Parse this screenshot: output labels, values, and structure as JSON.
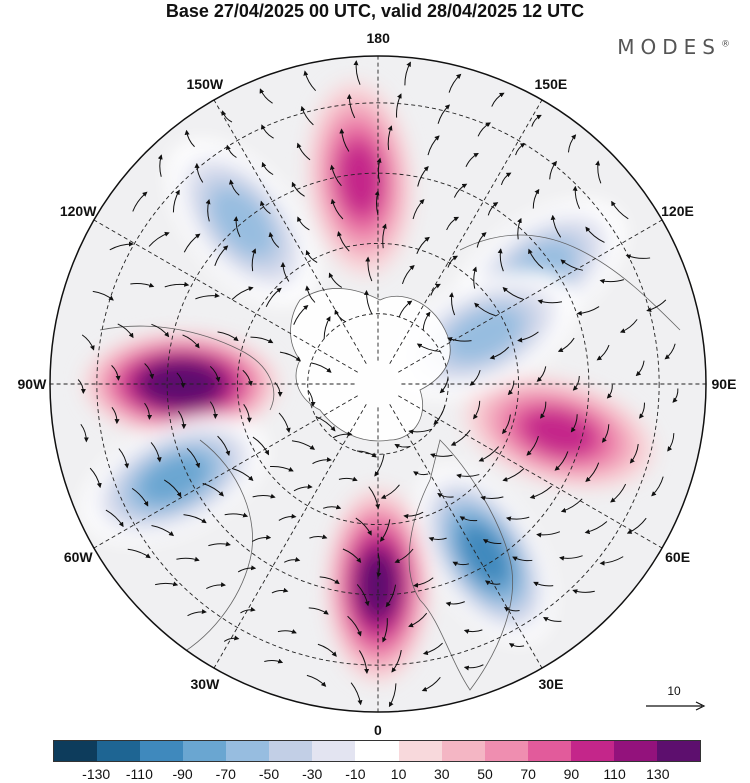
{
  "header": {
    "title": "Base 27/04/2025 00 UTC, valid 28/04/2025 12 UTC",
    "brand": "MODES",
    "brand_mark": "®"
  },
  "map": {
    "projection": "north-polar-stereographic",
    "longitude_labels": [
      {
        "text": "180",
        "lon": 180
      },
      {
        "text": "150E",
        "lon": 150
      },
      {
        "text": "120E",
        "lon": 120
      },
      {
        "text": "90E",
        "lon": 90
      },
      {
        "text": "60E",
        "lon": 60
      },
      {
        "text": "30E",
        "lon": 30
      },
      {
        "text": "0",
        "lon": 0
      },
      {
        "text": "30W",
        "lon": -30
      },
      {
        "text": "60W",
        "lon": -60
      },
      {
        "text": "90W",
        "lon": -90
      },
      {
        "text": "120W",
        "lon": -120
      },
      {
        "text": "150W",
        "lon": -150
      }
    ],
    "anomaly_centers": [
      {
        "sign": "positive",
        "level": 130,
        "lon": -90,
        "lat": 48
      },
      {
        "sign": "positive",
        "level": 110,
        "lon": 0,
        "lat": 47
      },
      {
        "sign": "positive",
        "level": 70,
        "lon": 75,
        "lat": 50
      },
      {
        "sign": "positive",
        "level": 70,
        "lon": -175,
        "lat": 46
      },
      {
        "sign": "negative",
        "level": -90,
        "lon": 32,
        "lat": 47
      },
      {
        "sign": "negative",
        "level": -70,
        "lon": -65,
        "lat": 42
      },
      {
        "sign": "negative",
        "level": -50,
        "lon": 125,
        "lat": 48
      },
      {
        "sign": "negative",
        "level": -50,
        "lon": -140,
        "lat": 45
      },
      {
        "sign": "negative",
        "level": -50,
        "lon": 115,
        "lat": 65
      }
    ],
    "reference_vector": "10"
  },
  "colorbar": {
    "colors": [
      "#0d3c5c",
      "#1e6593",
      "#3f89bd",
      "#6aa6d1",
      "#97bde0",
      "#c2cfe6",
      "#e3e4f1",
      "#ffffff",
      "#f8d9dc",
      "#f4b6c4",
      "#ef8eb0",
      "#e25b9b",
      "#c4268a",
      "#93127c",
      "#5d0f6e"
    ],
    "tick_labels": [
      "-130",
      "-110",
      "-90",
      "-70",
      "-50",
      "-30",
      "-10",
      "10",
      "30",
      "50",
      "70",
      "90",
      "110",
      "130"
    ]
  }
}
